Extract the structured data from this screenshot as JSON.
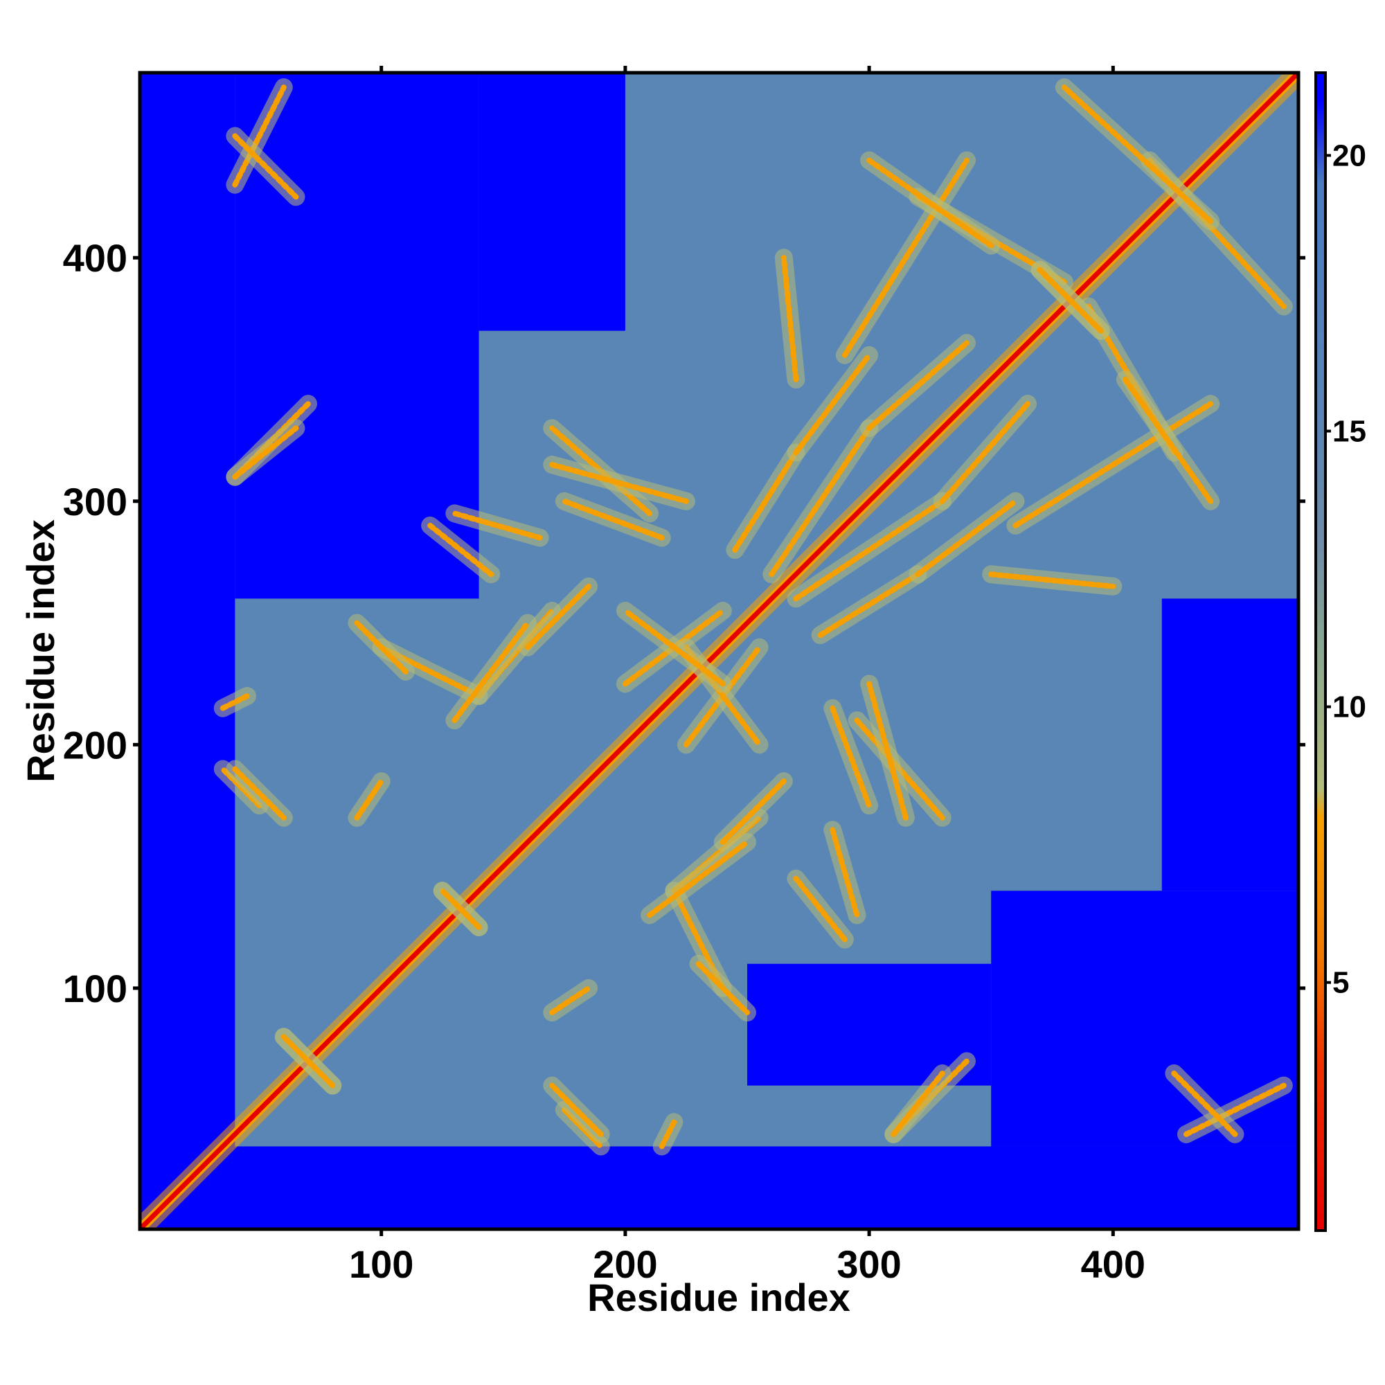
{
  "chart_data": {
    "type": "heatmap",
    "xlabel": "Residue index",
    "ylabel": "Residue index",
    "xlim": [
      1,
      476
    ],
    "ylim": [
      1,
      476
    ],
    "x_ticks": [
      100,
      200,
      300,
      400
    ],
    "y_ticks": [
      100,
      200,
      300,
      400
    ],
    "colorbar": {
      "min": 0.5,
      "max": 21.5,
      "ticks": [
        5,
        10,
        15,
        20
      ],
      "stops": [
        {
          "value": 0.5,
          "color": "#e60000"
        },
        {
          "value": 3.5,
          "color": "#ee3000"
        },
        {
          "value": 5.5,
          "color": "#f07800"
        },
        {
          "value": 8.0,
          "color": "#f5a000"
        },
        {
          "value": 8.5,
          "color": "#b4bc78"
        },
        {
          "value": 11.0,
          "color": "#8aa890"
        },
        {
          "value": 13.0,
          "color": "#6f8ca8"
        },
        {
          "value": 15.0,
          "color": "#5a86b5"
        },
        {
          "value": 19.5,
          "color": "#4a7cc0"
        },
        {
          "value": 21.0,
          "color": "#0000ff"
        }
      ]
    },
    "colors": {
      "far": "#0000ff",
      "mid": "#5a86b5",
      "near": "#f5a000",
      "contact": "#e60000"
    },
    "contact_features": [
      {
        "kind": "diagonal",
        "from": 1,
        "to": 476,
        "value": 1.0
      },
      {
        "kind": "segment",
        "from": [
          200,
          225
        ],
        "to": [
          240,
          255
        ],
        "value": 7
      },
      {
        "kind": "segment",
        "from": [
          225,
          240
        ],
        "to": [
          255,
          200
        ],
        "value": 7
      },
      {
        "kind": "segment",
        "from": [
          210,
          295
        ],
        "to": [
          170,
          330
        ],
        "value": 7
      },
      {
        "kind": "segment",
        "from": [
          260,
          270
        ],
        "to": [
          300,
          330
        ],
        "value": 7
      },
      {
        "kind": "segment",
        "from": [
          300,
          330
        ],
        "to": [
          340,
          365
        ],
        "value": 7
      },
      {
        "kind": "segment",
        "from": [
          280,
          245
        ],
        "to": [
          320,
          270
        ],
        "value": 7
      },
      {
        "kind": "segment",
        "from": [
          320,
          270
        ],
        "to": [
          360,
          300
        ],
        "value": 7
      },
      {
        "kind": "segment",
        "from": [
          170,
          315
        ],
        "to": [
          225,
          300
        ],
        "value": 7
      },
      {
        "kind": "segment",
        "from": [
          290,
          360
        ],
        "to": [
          340,
          440
        ],
        "value": 7
      },
      {
        "kind": "segment",
        "from": [
          320,
          425
        ],
        "to": [
          380,
          390
        ],
        "value": 7
      },
      {
        "kind": "segment",
        "from": [
          405,
          350
        ],
        "to": [
          440,
          300
        ],
        "value": 7
      },
      {
        "kind": "segment",
        "from": [
          415,
          440
        ],
        "to": [
          470,
          380
        ],
        "value": 7
      },
      {
        "kind": "segment",
        "from": [
          270,
          350
        ],
        "to": [
          265,
          400
        ],
        "value": 7
      },
      {
        "kind": "segment",
        "from": [
          100,
          240
        ],
        "to": [
          140,
          220
        ],
        "value": 7
      },
      {
        "kind": "segment",
        "from": [
          140,
          220
        ],
        "to": [
          170,
          255
        ],
        "value": 7
      },
      {
        "kind": "segment",
        "from": [
          120,
          290
        ],
        "to": [
          145,
          270
        ],
        "value": 7
      },
      {
        "kind": "segment",
        "from": [
          240,
          160
        ],
        "to": [
          265,
          185
        ],
        "value": 7
      },
      {
        "kind": "segment",
        "from": [
          210,
          130
        ],
        "to": [
          250,
          160
        ],
        "value": 7
      },
      {
        "kind": "segment",
        "from": [
          285,
          215
        ],
        "to": [
          300,
          175
        ],
        "value": 7
      },
      {
        "kind": "segment",
        "from": [
          285,
          165
        ],
        "to": [
          295,
          130
        ],
        "value": 7
      },
      {
        "kind": "segment",
        "from": [
          230,
          110
        ],
        "to": [
          250,
          90
        ],
        "value": 7
      },
      {
        "kind": "segment",
        "from": [
          175,
          50
        ],
        "to": [
          190,
          35
        ],
        "value": 7
      },
      {
        "kind": "segment",
        "from": [
          310,
          40
        ],
        "to": [
          340,
          70
        ],
        "value": 7
      },
      {
        "kind": "segment",
        "from": [
          430,
          40
        ],
        "to": [
          470,
          60
        ],
        "value": 7
      },
      {
        "kind": "segment",
        "from": [
          40,
          190
        ],
        "to": [
          60,
          170
        ],
        "value": 7
      },
      {
        "kind": "segment",
        "from": [
          40,
          310
        ],
        "to": [
          65,
          330
        ],
        "value": 7
      },
      {
        "kind": "segment",
        "from": [
          40,
          450
        ],
        "to": [
          65,
          425
        ],
        "value": 7
      },
      {
        "kind": "segment",
        "from": [
          35,
          215
        ],
        "to": [
          45,
          220
        ],
        "value": 7
      },
      {
        "kind": "segment",
        "from": [
          60,
          80
        ],
        "to": [
          80,
          60
        ],
        "value": 7
      },
      {
        "kind": "segment",
        "from": [
          125,
          140
        ],
        "to": [
          140,
          125
        ],
        "value": 7
      },
      {
        "kind": "segment",
        "from": [
          370,
          395
        ],
        "to": [
          395,
          370
        ],
        "value": 7
      },
      {
        "kind": "segment",
        "from": [
          90,
          170
        ],
        "to": [
          100,
          185
        ],
        "value": 7
      }
    ],
    "far_regions": [
      {
        "x": [
          1,
          40
        ],
        "y": [
          1,
          476
        ]
      },
      {
        "x": [
          1,
          476
        ],
        "y": [
          1,
          35
        ]
      },
      {
        "x": [
          40,
          140
        ],
        "y": [
          260,
          476
        ]
      },
      {
        "x": [
          140,
          200
        ],
        "y": [
          370,
          476
        ]
      },
      {
        "x": [
          350,
          476
        ],
        "y": [
          35,
          140
        ]
      },
      {
        "x": [
          250,
          350
        ],
        "y": [
          60,
          110
        ]
      },
      {
        "x": [
          420,
          476
        ],
        "y": [
          140,
          260
        ]
      }
    ]
  }
}
